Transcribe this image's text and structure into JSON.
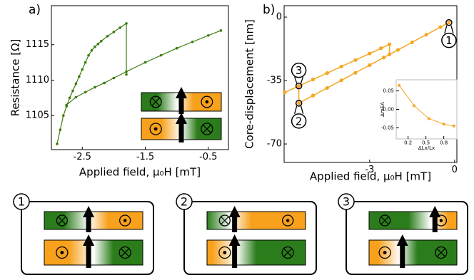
{
  "chart_data": [
    {
      "type": "line",
      "panel_label": "a)",
      "xlabel": "Applied field, μ₀H [mT]",
      "ylabel": "Resistance [Ω]",
      "xlim": [
        -2.99,
        -0.18
      ],
      "ylim": [
        1100.2,
        1120.5
      ],
      "xticks": [
        -2.5,
        -1.5,
        -0.5
      ],
      "yticks": [
        1105,
        1110,
        1115
      ],
      "series": [
        {
          "color": "#3a7d0f",
          "x": [
            -0.3,
            -0.5,
            -0.75,
            -1.0,
            -1.25,
            -1.5,
            -1.8,
            -2.0,
            -2.15,
            -2.3,
            -2.45,
            -2.6,
            -2.75
          ],
          "values": [
            1117,
            1116.3,
            1115.4,
            1114.5,
            1113.5,
            1112.5,
            1111.2,
            1110.3,
            1109.6,
            1109,
            1108.3,
            1107.6,
            1106.5
          ]
        },
        {
          "color": "#3a7d0f",
          "x": [
            -2.9,
            -2.85,
            -2.8,
            -2.75,
            -2.7,
            -2.65,
            -2.6,
            -2.55,
            -2.5,
            -2.45,
            -2.4,
            -2.35,
            -2.3,
            -2.25,
            -2.2,
            -2.1,
            -2.0,
            -1.9,
            -1.8,
            -1.8
          ],
          "values": [
            1101,
            1103,
            1105,
            1106.3,
            1107.5,
            1108.5,
            1109.5,
            1110.5,
            1111.5,
            1112.5,
            1113.5,
            1114.2,
            1114.7,
            1115.1,
            1115.5,
            1116.2,
            1116.8,
            1117.4,
            1118,
            1110.8
          ]
        }
      ]
    },
    {
      "type": "line",
      "panel_label": "b)",
      "xlabel": "Applied field, μ₀H [mT]",
      "ylabel": "Core-displacement [nm]",
      "xlim": [
        -6.02,
        0.08
      ],
      "ylim": [
        -80.2,
        6.3
      ],
      "xticks": [
        -3,
        0
      ],
      "yticks": [
        -70,
        -35,
        0
      ],
      "series": [
        {
          "color": "#f5a623",
          "x": [
            -6.0,
            -5.5,
            -5.0,
            -4.5,
            -4.0,
            -3.5,
            -3.0,
            -2.6,
            -2.3,
            -2.3
          ],
          "values": [
            -41.6,
            -38,
            -34.4,
            -30.9,
            -27.3,
            -23.7,
            -20.1,
            -17.2,
            -15,
            -20.6
          ]
        },
        {
          "color": "#f5a623",
          "x": [
            -5.5,
            -5.5,
            -5.0,
            -4.5,
            -4.0,
            -3.5,
            -3.0,
            -2.5,
            -2.0,
            -1.5,
            -1.0,
            -0.5,
            -0.2
          ],
          "values": [
            -38,
            -47.5,
            -43.3,
            -39.1,
            -34.9,
            -30.7,
            -26.5,
            -22.3,
            -18.1,
            -13.9,
            -9.7,
            -5.5,
            -3
          ]
        }
      ],
      "annotations": [
        {
          "text": "1",
          "x": -0.2,
          "y": -3
        },
        {
          "text": "2",
          "x": -5.5,
          "y": -47.5
        },
        {
          "text": "3",
          "x": -5.5,
          "y": -38
        }
      ]
    },
    {
      "type": "line",
      "xlabel": "ΔLx/Lx",
      "ylabel": "ΔmEA",
      "xlim": [
        0,
        1.02
      ],
      "ylim": [
        -0.08,
        0.08
      ],
      "xticks": [
        0.2,
        0.5,
        0.8
      ],
      "yticks": [
        0.05,
        {
          "value": 0,
          "label": "0.00"
        },
        -0.05
      ],
      "series": [
        {
          "color": "#f5a623",
          "x": [
            0.05,
            0.3,
            0.55,
            0.8,
            0.97
          ],
          "values": [
            0.065,
            0.01,
            -0.025,
            -0.04,
            -0.045
          ]
        }
      ]
    }
  ],
  "diagrams": [
    {
      "label": "1"
    },
    {
      "label": "2"
    },
    {
      "label": "3"
    }
  ]
}
